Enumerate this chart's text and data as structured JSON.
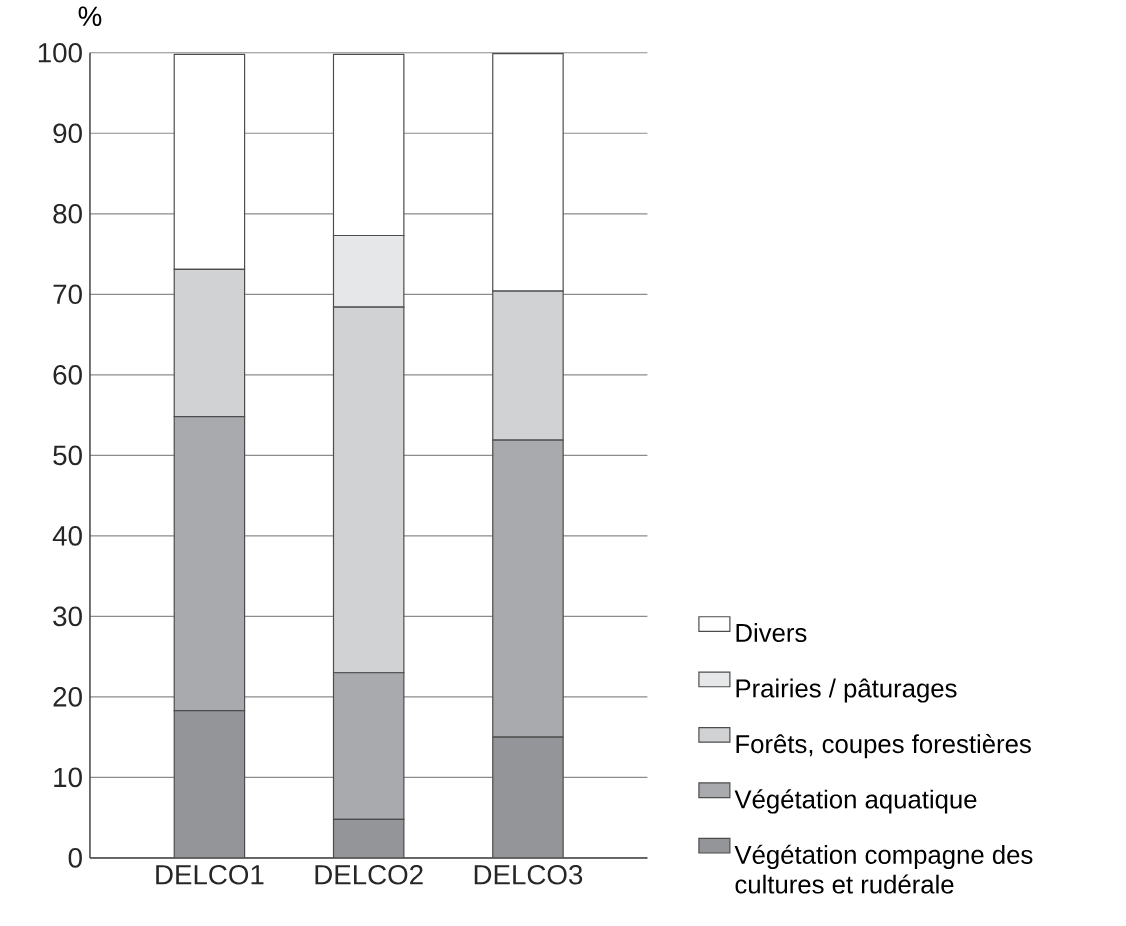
{
  "chart_data": {
    "type": "bar",
    "stacked": true,
    "ylabel": "%",
    "categories": [
      "DELCO1",
      "DELCO2",
      "DELCO3"
    ],
    "series": [
      {
        "name": "Végétation compagne des cultures et rudérale",
        "color": "#939598",
        "values": [
          18.3,
          4.8,
          15.0
        ]
      },
      {
        "name": "Végétation aquatique",
        "color": "#a9aaad",
        "values": [
          36.5,
          18.2,
          36.9
        ]
      },
      {
        "name": "Forêts, coupes forestières",
        "color": "#d1d2d4",
        "values": [
          18.3,
          45.4,
          18.5
        ]
      },
      {
        "name": "Prairies / pâturages",
        "color": "#e6e7e8",
        "values": [
          0,
          8.9,
          0
        ]
      },
      {
        "name": "Divers",
        "color": "#ffffff",
        "values": [
          26.7,
          22.5,
          29.5
        ]
      }
    ],
    "ylim": [
      0,
      100
    ],
    "yticks": [
      0,
      10,
      20,
      30,
      40,
      50,
      60,
      70,
      80,
      90,
      100
    ],
    "grid": "y",
    "legend": "right"
  }
}
